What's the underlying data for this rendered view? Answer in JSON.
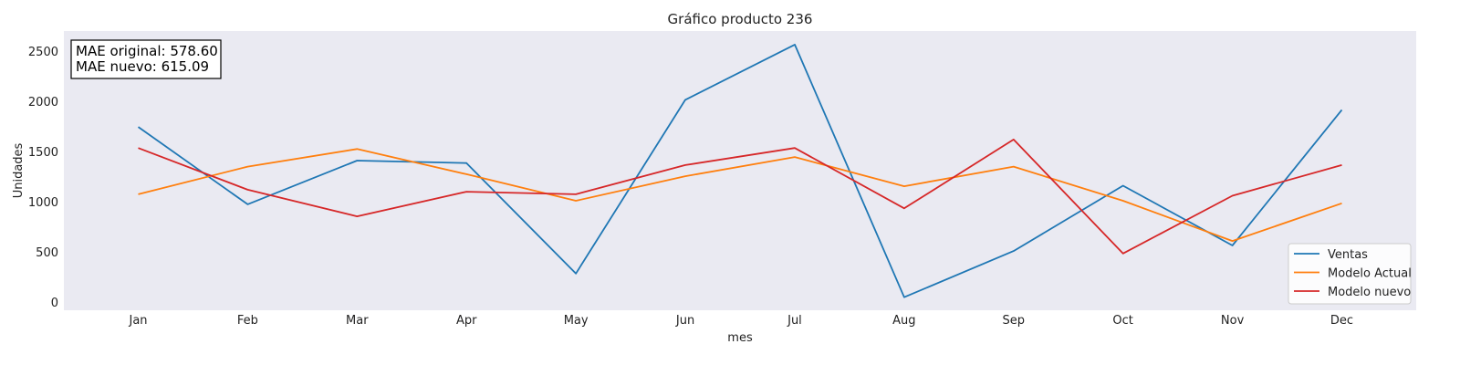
{
  "chart_data": {
    "type": "line",
    "title": "Gráfico producto 236",
    "xlabel": "mes",
    "ylabel": "Unidades",
    "categories": [
      "Jan",
      "Feb",
      "Mar",
      "Apr",
      "May",
      "Jun",
      "Jul",
      "Aug",
      "Sep",
      "Oct",
      "Nov",
      "Dec"
    ],
    "yticks": [
      0,
      500,
      1000,
      1500,
      2000,
      2500
    ],
    "ylim": [
      -80,
      2700
    ],
    "grid": false,
    "legend_position": "bottom-right",
    "annotation": [
      "MAE original: 578.60",
      "MAE nuevo: 615.09"
    ],
    "series": [
      {
        "name": "Ventas",
        "color": "#1f77b4",
        "values": [
          1745,
          975,
          1410,
          1385,
          285,
          2015,
          2565,
          50,
          510,
          1160,
          565,
          1915
        ]
      },
      {
        "name": "Modelo Actual",
        "color": "#ff7f0e",
        "values": [
          1075,
          1350,
          1525,
          1275,
          1010,
          1255,
          1445,
          1155,
          1350,
          1010,
          610,
          985
        ]
      },
      {
        "name": "Modelo nuevo",
        "color": "#d62728",
        "values": [
          1535,
          1120,
          855,
          1100,
          1075,
          1365,
          1535,
          935,
          1620,
          485,
          1060,
          1365
        ]
      }
    ]
  }
}
